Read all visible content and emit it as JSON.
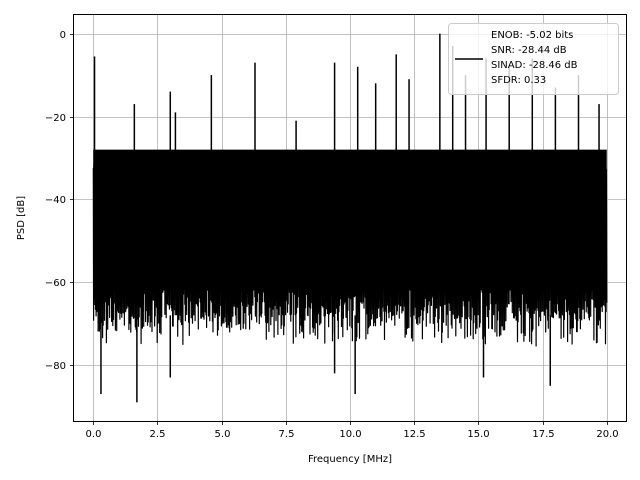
{
  "chart_data": {
    "type": "line",
    "title": "",
    "xlabel": "Frequency [MHz]",
    "ylabel": "PSD [dB]",
    "xlim": [
      -0.75,
      20.75
    ],
    "ylim": [
      -93.5,
      4.5
    ],
    "x_ticks": [
      0.0,
      2.5,
      5.0,
      7.5,
      10.0,
      12.5,
      15.0,
      17.5,
      20.0
    ],
    "x_tick_labels": [
      "0.0",
      "2.5",
      "5.0",
      "7.5",
      "10.0",
      "12.5",
      "15.0",
      "17.5",
      "20.0"
    ],
    "y_ticks": [
      0,
      -20,
      -40,
      -60,
      -80
    ],
    "y_tick_labels": [
      "0",
      "−20",
      "−40",
      "−60",
      "−80"
    ],
    "grid": true,
    "legend_position": "top-right",
    "legend_lines": [
      "ENOB: -5.02 bits",
      "SNR: -28.44 dB",
      "SINAD: -28.46 dB",
      "SFDR: 0.33"
    ],
    "series": [
      {
        "color": "#000000",
        "x_range": [
          0,
          20
        ],
        "noise_top_db": -30,
        "noise_bottom_db": -68,
        "peaks": [
          {
            "x": 0.05,
            "y": -5.5
          },
          {
            "x": 1.6,
            "y": -17
          },
          {
            "x": 3.0,
            "y": -14
          },
          {
            "x": 3.2,
            "y": -19
          },
          {
            "x": 4.6,
            "y": -10
          },
          {
            "x": 6.3,
            "y": -7
          },
          {
            "x": 7.9,
            "y": -21
          },
          {
            "x": 9.4,
            "y": -7
          },
          {
            "x": 10.3,
            "y": -8
          },
          {
            "x": 11.0,
            "y": -12
          },
          {
            "x": 11.8,
            "y": -5
          },
          {
            "x": 12.3,
            "y": -11
          },
          {
            "x": 13.5,
            "y": 0
          },
          {
            "x": 14.0,
            "y": -3
          },
          {
            "x": 14.5,
            "y": -10
          },
          {
            "x": 15.3,
            "y": -6
          },
          {
            "x": 16.2,
            "y": -8
          },
          {
            "x": 17.1,
            "y": -6
          },
          {
            "x": 18.0,
            "y": -13
          },
          {
            "x": 18.9,
            "y": -10
          },
          {
            "x": 19.7,
            "y": -17
          }
        ],
        "dips": [
          {
            "x": 0.3,
            "y": -87
          },
          {
            "x": 1.7,
            "y": -89
          },
          {
            "x": 3.0,
            "y": -83
          },
          {
            "x": 10.2,
            "y": -87
          },
          {
            "x": 9.4,
            "y": -82
          },
          {
            "x": 15.2,
            "y": -83
          },
          {
            "x": 17.8,
            "y": -85
          }
        ]
      }
    ]
  }
}
